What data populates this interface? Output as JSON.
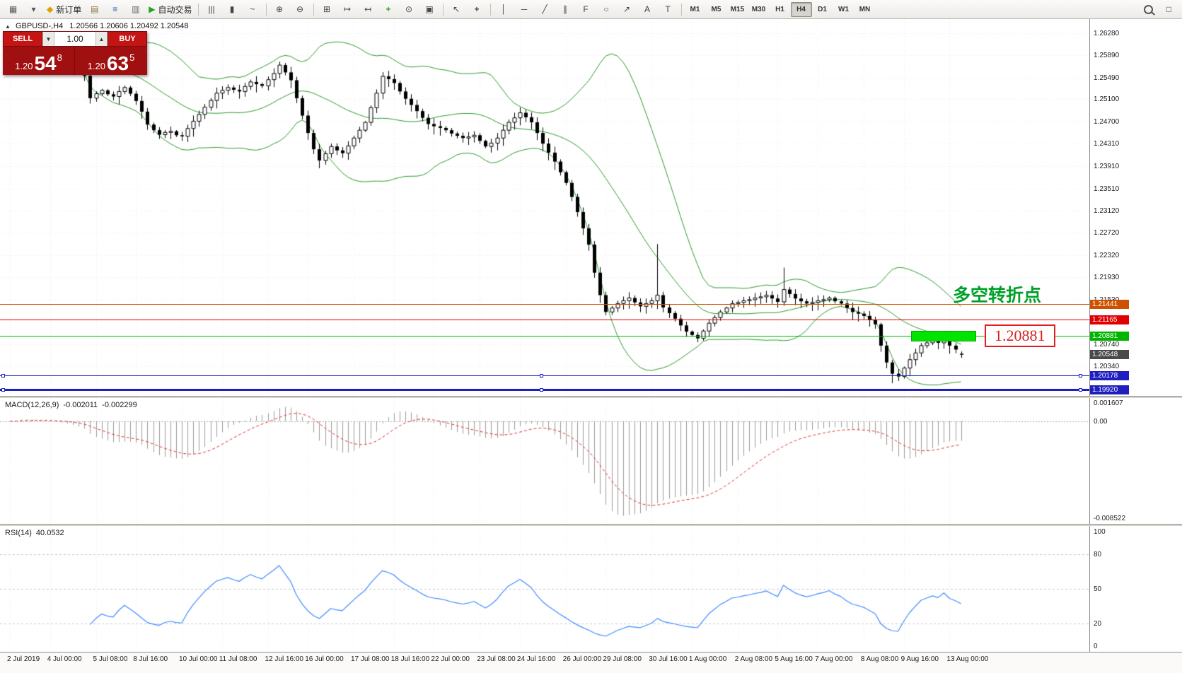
{
  "toolbar": {
    "new_order_label": "新订单",
    "auto_trading_label": "自动交易",
    "timeframes": [
      "M1",
      "M5",
      "M15",
      "M30",
      "H1",
      "H4",
      "D1",
      "W1",
      "MN"
    ],
    "active_timeframe": "H4",
    "items": [
      {
        "k": "icon",
        "n": "new-chart-icon",
        "g": "▦",
        "c": "#555"
      },
      {
        "k": "icon",
        "n": "chart-dropdown-caret",
        "g": "▾",
        "c": "#555"
      },
      {
        "k": "btn",
        "n": "new-order-button",
        "g": "◆",
        "gc": "#e0a000",
        "label": "新订单"
      },
      {
        "k": "icon",
        "n": "charts-profile-icon",
        "g": "▤",
        "c": "#8a6d3b"
      },
      {
        "k": "icon",
        "n": "market-watch-icon",
        "g": "≡",
        "c": "#2a5db0"
      },
      {
        "k": "icon",
        "n": "data-window-icon",
        "g": "▥",
        "c": "#666"
      },
      {
        "k": "btn",
        "n": "auto-trading-button",
        "g": "▶",
        "gc": "#1fa51f",
        "label": "自动交易"
      },
      {
        "k": "sep"
      },
      {
        "k": "icon",
        "n": "bar-chart-type-icon",
        "g": "|||",
        "c": "#444"
      },
      {
        "k": "icon",
        "n": "candlestick-type-icon",
        "g": "▮",
        "c": "#444"
      },
      {
        "k": "icon",
        "n": "line-chart-type-icon",
        "g": "~",
        "c": "#444"
      },
      {
        "k": "sep"
      },
      {
        "k": "icon",
        "n": "zoom-in-icon",
        "g": "⊕",
        "c": "#444"
      },
      {
        "k": "icon",
        "n": "zoom-out-icon",
        "g": "⊖",
        "c": "#444"
      },
      {
        "k": "sep"
      },
      {
        "k": "icon",
        "n": "tile-windows-icon",
        "g": "⊞",
        "c": "#444"
      },
      {
        "k": "icon",
        "n": "auto-scroll-icon",
        "g": "↦",
        "c": "#444"
      },
      {
        "k": "icon",
        "n": "chart-shift-icon",
        "g": "↤",
        "c": "#444"
      },
      {
        "k": "icon",
        "n": "indicators-icon",
        "g": "+",
        "c": "#1fa51f"
      },
      {
        "k": "icon",
        "n": "periods-icon",
        "g": "⊙",
        "c": "#444"
      },
      {
        "k": "icon",
        "n": "templates-icon",
        "g": "▣",
        "c": "#444"
      },
      {
        "k": "sep"
      },
      {
        "k": "icon",
        "n": "cursor-icon",
        "g": "↖",
        "c": "#444"
      },
      {
        "k": "icon",
        "n": "crosshair-icon",
        "g": "+",
        "c": "#444"
      },
      {
        "k": "sep"
      },
      {
        "k": "icon",
        "n": "vertical-line-icon",
        "g": "│",
        "c": "#444"
      },
      {
        "k": "icon",
        "n": "horizontal-line-icon",
        "g": "─",
        "c": "#444"
      },
      {
        "k": "icon",
        "n": "trendline-icon",
        "g": "╱",
        "c": "#444"
      },
      {
        "k": "icon",
        "n": "channel-icon",
        "g": "∥",
        "c": "#444"
      },
      {
        "k": "icon",
        "n": "fibonacci-icon",
        "g": "F",
        "c": "#444"
      },
      {
        "k": "icon",
        "n": "shapes-icon",
        "g": "○",
        "c": "#444"
      },
      {
        "k": "icon",
        "n": "arrow-tool-icon",
        "g": "↗",
        "c": "#444"
      },
      {
        "k": "icon",
        "n": "text-tool-icon",
        "g": "A",
        "c": "#444"
      },
      {
        "k": "icon",
        "n": "label-tool-icon",
        "g": "T",
        "c": "#444"
      },
      {
        "k": "sep"
      },
      {
        "k": "tf"
      },
      {
        "k": "spacer"
      },
      {
        "k": "search",
        "n": "search-icon"
      },
      {
        "k": "icon",
        "n": "layout-icon",
        "g": "□",
        "c": "#444"
      }
    ]
  },
  "chart": {
    "symbol": "GBPUSD-,H4",
    "ohlc_text": "1.20566 1.20606 1.20492 1.20548",
    "collapse_caret": "▲"
  },
  "trade": {
    "sell_label": "SELL",
    "buy_label": "BUY",
    "volume": "1.00",
    "spin_down": "▼",
    "spin_up": "▲",
    "sell": {
      "prefix": "1.20",
      "big": "54",
      "sup": "8"
    },
    "buy": {
      "prefix": "1.20",
      "big": "63",
      "sup": "5"
    }
  },
  "annotation": {
    "text": "多空转折点"
  },
  "callout": {
    "text": "1.20881"
  },
  "macd": {
    "title": "MACD(12,26,9)",
    "value1": "-0.002011",
    "value2": "-0.002299",
    "scale_max": "0.001607",
    "scale_zero": "0.00",
    "scale_min": "-0.008522"
  },
  "rsi": {
    "title": "RSI(14)",
    "value": "40.0532",
    "scale": [
      "100",
      "80",
      "50",
      "20",
      "0"
    ]
  },
  "chart_data": {
    "type": "candlestick",
    "symbol": "GBPUSD",
    "timeframe": "H4",
    "title": "GBPUSD-,H4",
    "ohlc_display": {
      "open": 1.20566,
      "high": 1.20606,
      "low": 1.20492,
      "close": 1.20548
    },
    "current_price": 1.20548,
    "first_open": 1.2582,
    "closes": [
      1.2588,
      1.2595,
      1.2601,
      1.2596,
      1.259,
      1.2585,
      1.2592,
      1.2586,
      1.2578,
      1.2581,
      1.2574,
      1.2568,
      1.256,
      1.2552,
      1.2512,
      1.252,
      1.2526,
      1.2519,
      1.2515,
      1.2524,
      1.2531,
      1.252,
      1.2507,
      1.2488,
      1.2465,
      1.2455,
      1.2447,
      1.2451,
      1.2453,
      1.2446,
      1.2444,
      1.2458,
      1.2471,
      1.2483,
      1.2496,
      1.2508,
      1.2521,
      1.2526,
      1.2531,
      1.2527,
      1.2524,
      1.2533,
      1.2541,
      1.2537,
      1.2534,
      1.2545,
      1.2556,
      1.2571,
      1.2558,
      1.2544,
      1.2512,
      1.2481,
      1.245,
      1.2421,
      1.2401,
      1.2413,
      1.2426,
      1.2419,
      1.2414,
      1.2427,
      1.2441,
      1.2455,
      1.2469,
      1.2495,
      1.2521,
      1.2551,
      1.2546,
      1.2539,
      1.2524,
      1.2511,
      1.25,
      1.2489,
      1.2477,
      1.2466,
      1.2462,
      1.2459,
      1.2455,
      1.2449,
      1.2445,
      1.2441,
      1.2443,
      1.2446,
      1.2436,
      1.2426,
      1.2432,
      1.2441,
      1.2455,
      1.2469,
      1.2477,
      1.2486,
      1.2478,
      1.2469,
      1.245,
      1.2431,
      1.2415,
      1.2399,
      1.238,
      1.2361,
      1.2336,
      1.2309,
      1.228,
      1.2251,
      1.2201,
      1.2161,
      1.2131,
      1.2138,
      1.2146,
      1.2151,
      1.2156,
      1.2148,
      1.2141,
      1.2146,
      1.2151,
      1.2161,
      1.2139,
      1.2129,
      1.2119,
      1.2107,
      1.2096,
      1.209,
      1.2084,
      1.2097,
      1.2111,
      1.2121,
      1.2131,
      1.2138,
      1.2146,
      1.2148,
      1.2151,
      1.2153,
      1.2156,
      1.2158,
      1.2161,
      1.2155,
      1.2149,
      1.2171,
      1.2163,
      1.2155,
      1.215,
      1.2146,
      1.2148,
      1.2151,
      1.2153,
      1.2156,
      1.215,
      1.2146,
      1.2138,
      1.2131,
      1.2128,
      1.2124,
      1.2117,
      1.2109,
      1.2071,
      1.2041,
      1.2021,
      1.2016,
      1.2031,
      1.2046,
      1.2058,
      1.2071,
      1.2076,
      1.2081,
      1.2076,
      1.2086,
      1.2071,
      1.2064,
      1.20548
    ],
    "overrides": {
      "104": {
        "l": 1.2125
      },
      "113": {
        "h": 1.2252
      },
      "135": {
        "h": 1.221
      },
      "152": {
        "l": 1.206
      },
      "154": {
        "l": 1.2004
      },
      "155": {
        "l": 1.2008
      },
      "166": {
        "o": 1.20566,
        "h": 1.20606,
        "l": 1.20492
      }
    },
    "indicators": {
      "bollinger": {
        "period": 20,
        "deviation": 2,
        "color": "#2e9b2e"
      },
      "macd": {
        "fast": 12,
        "slow": 26,
        "signal": 9,
        "current_main": -0.002011,
        "current_signal": -0.002299
      },
      "rsi": {
        "period": 14,
        "current": 40.0532
      }
    },
    "levels": [
      {
        "price": 1.21441,
        "label": "1.21441",
        "color": "#cc5200",
        "width": 1,
        "handles": false
      },
      {
        "price": 1.21165,
        "label": "1.21165",
        "color": "#e00000",
        "width": 1,
        "handles": false
      },
      {
        "price": 1.20881,
        "label": "1.20881",
        "color": "#00b400",
        "width": 1,
        "handles": false
      },
      {
        "price": 1.20178,
        "label": "1.20178",
        "color": "#1f1fbf",
        "width": 1,
        "handles": true
      },
      {
        "price": 1.1992,
        "label": "1.19920",
        "color": "#1f1fbf",
        "width": 3,
        "handles": true
      }
    ],
    "current_tag": {
      "label": "1.20548",
      "color": "#4a4a4a"
    },
    "y_ticks": [
      "1.26280",
      "1.25890",
      "1.25490",
      "1.25100",
      "1.24700",
      "1.24310",
      "1.23910",
      "1.23510",
      "1.23120",
      "1.22720",
      "1.22320",
      "1.21930",
      "1.21530",
      "1.20740",
      "1.20340"
    ],
    "ylim": [
      1.1984,
      1.2653
    ],
    "x_labels": [
      {
        "text": "2 Jul 2019",
        "i": 0
      },
      {
        "text": "4 Jul 00:00",
        "i": 7
      },
      {
        "text": "5 Jul 08:00",
        "i": 15
      },
      {
        "text": "8 Jul 16:00",
        "i": 22
      },
      {
        "text": "10 Jul 00:00",
        "i": 30
      },
      {
        "text": "11 Jul 08:00",
        "i": 37
      },
      {
        "text": "12 Jul 16:00",
        "i": 45
      },
      {
        "text": "16 Jul 00:00",
        "i": 52
      },
      {
        "text": "17 Jul 08:00",
        "i": 60
      },
      {
        "text": "18 Jul 16:00",
        "i": 67
      },
      {
        "text": "22 Jul 00:00",
        "i": 74
      },
      {
        "text": "23 Jul 08:00",
        "i": 82
      },
      {
        "text": "24 Jul 16:00",
        "i": 89
      },
      {
        "text": "26 Jul 00:00",
        "i": 97
      },
      {
        "text": "29 Jul 08:00",
        "i": 104
      },
      {
        "text": "30 Jul 16:00",
        "i": 112
      },
      {
        "text": "1 Aug 00:00",
        "i": 119
      },
      {
        "text": "2 Aug 08:00",
        "i": 127
      },
      {
        "text": "5 Aug 16:00",
        "i": 134
      },
      {
        "text": "7 Aug 00:00",
        "i": 141
      },
      {
        "text": "8 Aug 08:00",
        "i": 149
      },
      {
        "text": "9 Aug 16:00",
        "i": 156
      },
      {
        "text": "13 Aug 00:00",
        "i": 164
      }
    ],
    "macd_ylim": [
      -0.0088,
      0.0018
    ],
    "rsi_levels": [
      80,
      50,
      20
    ]
  }
}
